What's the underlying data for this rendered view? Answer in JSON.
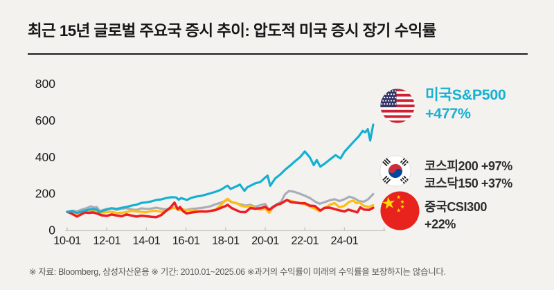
{
  "title": "최근 15년 글로벌 주요국 증시 추이: 압도적 미국 증시 장기 수익률",
  "footnote": "※ 자료: Bloomberg, 삼성자산운용 ※ 기간: 2010.01~2025.06 ※과거의 수익률이 미래의 수익률을 보장하지는 않습니다.",
  "colors": {
    "background": "#f3f2ef",
    "title_text": "#161616",
    "axis_text": "#1d1d1d",
    "axis_line": "#c6c4bf",
    "us_accent": "#17b1d2",
    "legend_text_dark": "#2d2d2d",
    "sp500_line": "#15b0d1",
    "kospi_line": "#a9adb8",
    "kosdaq_line": "#fdbe12",
    "csi300_line": "#ee1c23"
  },
  "legend": [
    {
      "flag": "us-flag-icon",
      "line1": "미국S&P500",
      "line2": "+477%",
      "color": "#17b1d2"
    },
    {
      "flag": "kr-flag-icon",
      "line1": "코스피200 +97%",
      "line2": "코스닥150 +37%",
      "color": "#2d2d2d"
    },
    {
      "flag": "cn-flag-icon",
      "line1": "중국CSI300",
      "line2": "+22%",
      "color": "#2d2d2d"
    }
  ],
  "chart_data": {
    "type": "line",
    "title": "최근 15년 글로벌 주요국 증시 추이",
    "x_unit": "year (지수화 기준: 2010.01 = 100)",
    "x_range": [
      2010.0,
      2026.0
    ],
    "ylim": [
      0,
      800
    ],
    "yticks": [
      0,
      200,
      400,
      600,
      800
    ],
    "grid": false,
    "legend_position": "right",
    "x_tick_labels": [
      {
        "year": 2010,
        "label": "10-01"
      },
      {
        "year": 2012,
        "label": "12-01"
      },
      {
        "year": 2014,
        "label": "14-01"
      },
      {
        "year": 2016,
        "label": "16-01"
      },
      {
        "year": 2018,
        "label": "18-01"
      },
      {
        "year": 2020,
        "label": "20-01"
      },
      {
        "year": 2022,
        "label": "22-01"
      },
      {
        "year": 2024,
        "label": "24-01"
      }
    ],
    "series": [
      {
        "name": "코스피200",
        "return_label": "+97%",
        "color": "#a9adb8",
        "width": 3.2,
        "x": [
          2010,
          2010.25,
          2010.5,
          2010.75,
          2011,
          2011.2,
          2011.35,
          2011.5,
          2011.65,
          2011.8,
          2012,
          2012.25,
          2012.5,
          2012.75,
          2013,
          2013.25,
          2013.5,
          2013.75,
          2014,
          2014.25,
          2014.5,
          2014.75,
          2015,
          2015.3,
          2015.5,
          2015.7,
          2016,
          2016.25,
          2016.5,
          2016.75,
          2017,
          2017.25,
          2017.5,
          2017.75,
          2018,
          2018.12,
          2018.3,
          2018.5,
          2018.75,
          2019,
          2019.25,
          2019.5,
          2019.75,
          2020,
          2020.2,
          2020.4,
          2020.6,
          2020.8,
          2021,
          2021.2,
          2021.45,
          2021.7,
          2022,
          2022.25,
          2022.5,
          2022.75,
          2023,
          2023.25,
          2023.5,
          2023.75,
          2024,
          2024.25,
          2024.5,
          2024.75,
          2025,
          2025.2,
          2025.45
        ],
        "values": [
          100,
          106,
          103,
          113,
          121,
          130,
          124,
          126,
          104,
          110,
          116,
          120,
          111,
          117,
          120,
          113,
          110,
          119,
          116,
          118,
          123,
          117,
          113,
          124,
          119,
          111,
          110,
          116,
          118,
          121,
          125,
          131,
          142,
          149,
          161,
          166,
          152,
          148,
          141,
          134,
          139,
          128,
          136,
          143,
          108,
          130,
          143,
          155,
          196,
          214,
          210,
          201,
          188,
          176,
          157,
          144,
          153,
          163,
          169,
          159,
          169,
          183,
          174,
          158,
          156,
          169,
          197
        ]
      },
      {
        "name": "코스닥150",
        "return_label": "+37%",
        "color": "#fdbe12",
        "width": 3.2,
        "x": [
          2010,
          2010.25,
          2010.5,
          2010.75,
          2011,
          2011.25,
          2011.5,
          2011.65,
          2011.8,
          2012,
          2012.25,
          2012.5,
          2012.75,
          2013,
          2013.25,
          2013.5,
          2013.75,
          2014,
          2014.25,
          2014.5,
          2014.75,
          2015,
          2015.25,
          2015.45,
          2015.65,
          2015.8,
          2016,
          2016.25,
          2016.5,
          2016.75,
          2017,
          2017.25,
          2017.5,
          2017.75,
          2018,
          2018.1,
          2018.3,
          2018.5,
          2018.75,
          2019,
          2019.25,
          2019.5,
          2019.75,
          2020,
          2020.2,
          2020.4,
          2020.6,
          2020.8,
          2021,
          2021.2,
          2021.5,
          2021.75,
          2022,
          2022.25,
          2022.5,
          2022.75,
          2023,
          2023.25,
          2023.5,
          2023.75,
          2024,
          2024.25,
          2024.45,
          2024.6,
          2024.75,
          2025,
          2025.25,
          2025.45
        ],
        "values": [
          100,
          98,
          91,
          100,
          103,
          108,
          100,
          87,
          96,
          99,
          101,
          93,
          95,
          99,
          106,
          102,
          100,
          98,
          104,
          106,
          100,
          106,
          118,
          123,
          108,
          116,
          108,
          111,
          105,
          100,
          103,
          106,
          113,
          136,
          164,
          171,
          154,
          150,
          135,
          128,
          133,
          120,
          112,
          118,
          95,
          126,
          139,
          143,
          158,
          163,
          154,
          149,
          141,
          129,
          117,
          103,
          119,
          139,
          148,
          125,
          133,
          155,
          161,
          147,
          151,
          132,
          127,
          137
        ]
      },
      {
        "name": "중국CSI300",
        "return_label": "+22%",
        "color": "#ee1c23",
        "width": 3.5,
        "x": [
          2010,
          2010.15,
          2010.3,
          2010.5,
          2010.7,
          2010.9,
          2011.1,
          2011.3,
          2011.5,
          2011.75,
          2012,
          2012.25,
          2012.5,
          2012.75,
          2013,
          2013.25,
          2013.5,
          2013.75,
          2014,
          2014.25,
          2014.5,
          2014.75,
          2015,
          2015.2,
          2015.42,
          2015.58,
          2015.7,
          2015.85,
          2016.03,
          2016.25,
          2016.5,
          2016.75,
          2017,
          2017.25,
          2017.5,
          2017.75,
          2018,
          2018.1,
          2018.3,
          2018.5,
          2018.75,
          2019,
          2019.25,
          2019.5,
          2019.75,
          2020,
          2020.2,
          2020.4,
          2020.6,
          2020.8,
          2021,
          2021.1,
          2021.3,
          2021.5,
          2021.75,
          2022,
          2022.25,
          2022.5,
          2022.78,
          2023,
          2023.25,
          2023.5,
          2023.75,
          2024,
          2024.2,
          2024.45,
          2024.65,
          2024.8,
          2025,
          2025.25,
          2025.45
        ],
        "values": [
          100,
          94,
          86,
          74,
          86,
          97,
          94,
          97,
          91,
          81,
          78,
          86,
          80,
          76,
          86,
          80,
          74,
          79,
          76,
          73,
          71,
          82,
          106,
          122,
          150,
          114,
          126,
          104,
          91,
          96,
          99,
          103,
          101,
          105,
          110,
          121,
          132,
          138,
          121,
          111,
          99,
          98,
          121,
          117,
          120,
          127,
          111,
          126,
          139,
          146,
          159,
          165,
          153,
          151,
          147,
          147,
          134,
          132,
          107,
          122,
          123,
          115,
          108,
          102,
          112,
          104,
          97,
          124,
          112,
          111,
          122
        ]
      },
      {
        "name": "미국S&P500",
        "return_label": "+477%",
        "color": "#15b0d1",
        "width": 3.2,
        "x": [
          2010,
          2010.25,
          2010.5,
          2010.75,
          2011,
          2011.25,
          2011.5,
          2011.63,
          2011.75,
          2012,
          2012.25,
          2012.5,
          2012.75,
          2013,
          2013.25,
          2013.5,
          2013.75,
          2014,
          2014.25,
          2014.5,
          2014.75,
          2015,
          2015.25,
          2015.5,
          2015.63,
          2015.75,
          2016.05,
          2016.25,
          2016.5,
          2016.75,
          2017,
          2017.25,
          2017.5,
          2017.75,
          2018,
          2018.1,
          2018.25,
          2018.5,
          2018.72,
          2018.95,
          2019.1,
          2019.35,
          2019.5,
          2019.75,
          2020,
          2020.12,
          2020.25,
          2020.5,
          2020.75,
          2021,
          2021.25,
          2021.5,
          2021.75,
          2022,
          2022.25,
          2022.45,
          2022.6,
          2022.78,
          2023,
          2023.25,
          2023.55,
          2023.8,
          2024,
          2024.25,
          2024.5,
          2024.72,
          2024.92,
          2025.05,
          2025.18,
          2025.3,
          2025.45
        ],
        "values": [
          100,
          104,
          94,
          102,
          110,
          115,
          112,
          99,
          104,
          112,
          120,
          116,
          122,
          127,
          134,
          139,
          149,
          152,
          157,
          165,
          168,
          175,
          180,
          179,
          166,
          175,
          165,
          176,
          183,
          187,
          194,
          202,
          210,
          220,
          237,
          243,
          225,
          237,
          249,
          215,
          235,
          248,
          256,
          263,
          288,
          298,
          242,
          282,
          303,
          330,
          352,
          376,
          398,
          430,
          398,
          355,
          383,
          347,
          363,
          385,
          410,
          392,
          428,
          458,
          487,
          512,
          542,
          535,
          552,
          490,
          577
        ]
      }
    ]
  }
}
